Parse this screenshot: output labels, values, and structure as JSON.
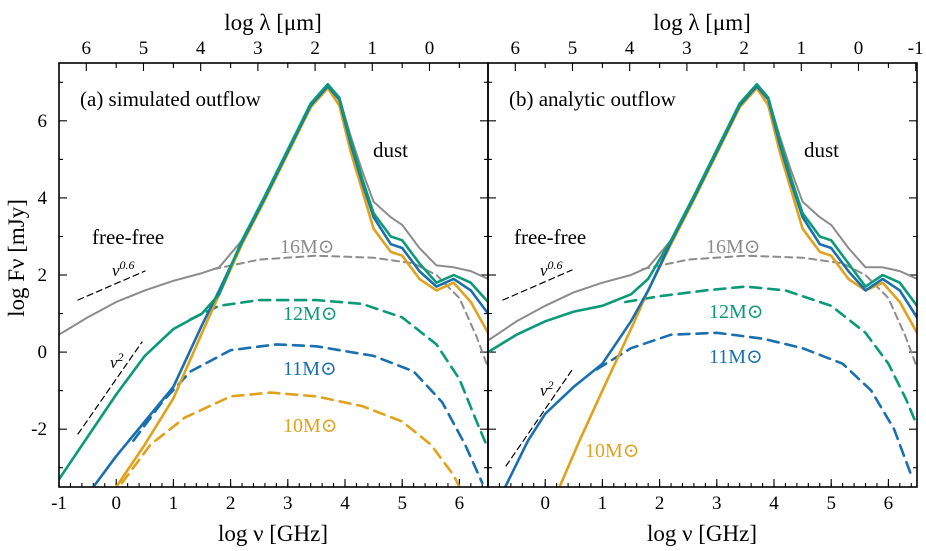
{
  "chart_data": [
    {
      "type": "line",
      "title": "(a) simulated outflow",
      "xlabel": "log ν [GHz]",
      "ylabel": "log Fν [mJy]",
      "top_xlabel": "log λ [μm]",
      "xlim": [
        -1,
        6.5
      ],
      "ylim": [
        -3.5,
        7.5
      ],
      "x_ticks": [
        "-1",
        "0",
        "1",
        "2",
        "3",
        "4",
        "5",
        "6"
      ],
      "y_ticks": [
        "-2",
        "0",
        "2",
        "4",
        "6"
      ],
      "top_ticks": [
        "6",
        "5",
        "4",
        "3",
        "2",
        "1",
        "0"
      ],
      "annotations": [
        "dust",
        "free-free",
        "ν0.6",
        "ν2"
      ],
      "series": [
        {
          "name": "16M⊙",
          "color": "#8c8c8c",
          "total": [
            [
              -1,
              0.45
            ],
            [
              -0.5,
              0.9
            ],
            [
              0,
              1.3
            ],
            [
              0.5,
              1.6
            ],
            [
              1,
              1.85
            ],
            [
              1.5,
              2.05
            ],
            [
              1.8,
              2.2
            ],
            [
              2.2,
              2.9
            ],
            [
              2.6,
              4.0
            ],
            [
              3.0,
              5.2
            ],
            [
              3.4,
              6.4
            ],
            [
              3.7,
              6.9
            ],
            [
              3.9,
              6.6
            ],
            [
              4.1,
              5.6
            ],
            [
              4.3,
              4.7
            ],
            [
              4.5,
              3.9
            ],
            [
              4.8,
              3.5
            ],
            [
              5.0,
              3.3
            ],
            [
              5.3,
              2.7
            ],
            [
              5.6,
              2.25
            ],
            [
              5.9,
              2.2
            ],
            [
              6.2,
              2.1
            ],
            [
              6.5,
              1.9
            ]
          ],
          "freefree": [
            [
              1.7,
              2.15
            ],
            [
              2.5,
              2.4
            ],
            [
              3.5,
              2.5
            ],
            [
              4.5,
              2.45
            ],
            [
              5.2,
              2.3
            ],
            [
              5.6,
              2.0
            ],
            [
              6.0,
              1.4
            ],
            [
              6.3,
              0.4
            ],
            [
              6.5,
              -0.4
            ]
          ]
        },
        {
          "name": "12M⊙",
          "color": "#0a9a78",
          "total": [
            [
              -1,
              -3.3
            ],
            [
              -0.5,
              -2.2
            ],
            [
              0,
              -1.1
            ],
            [
              0.5,
              -0.1
            ],
            [
              1,
              0.6
            ],
            [
              1.5,
              1.0
            ],
            [
              1.8,
              1.5
            ],
            [
              2.2,
              2.9
            ],
            [
              2.6,
              4.05
            ],
            [
              3.0,
              5.25
            ],
            [
              3.4,
              6.45
            ],
            [
              3.7,
              6.95
            ],
            [
              3.9,
              6.6
            ],
            [
              4.1,
              5.5
            ],
            [
              4.3,
              4.5
            ],
            [
              4.5,
              3.6
            ],
            [
              4.8,
              3.0
            ],
            [
              5.0,
              2.9
            ],
            [
              5.3,
              2.3
            ],
            [
              5.6,
              1.8
            ],
            [
              5.9,
              2.0
            ],
            [
              6.2,
              1.8
            ],
            [
              6.5,
              1.3
            ]
          ],
          "freefree": [
            [
              1.3,
              0.85
            ],
            [
              1.8,
              1.2
            ],
            [
              2.5,
              1.35
            ],
            [
              3.5,
              1.35
            ],
            [
              4.3,
              1.25
            ],
            [
              5.0,
              0.9
            ],
            [
              5.6,
              0.2
            ],
            [
              6.0,
              -0.7
            ],
            [
              6.3,
              -1.8
            ],
            [
              6.5,
              -2.5
            ]
          ]
        },
        {
          "name": "11M⊙",
          "color": "#1a6fae",
          "total": [
            [
              -0.4,
              -3.5
            ],
            [
              0,
              -2.7
            ],
            [
              0.5,
              -1.8
            ],
            [
              1,
              -0.9
            ],
            [
              1.5,
              0.7
            ],
            [
              1.8,
              1.6
            ],
            [
              2.2,
              2.85
            ],
            [
              2.6,
              4.0
            ],
            [
              3.0,
              5.2
            ],
            [
              3.4,
              6.4
            ],
            [
              3.7,
              6.9
            ],
            [
              3.9,
              6.55
            ],
            [
              4.1,
              5.4
            ],
            [
              4.3,
              4.4
            ],
            [
              4.5,
              3.5
            ],
            [
              4.8,
              2.8
            ],
            [
              5.0,
              2.7
            ],
            [
              5.3,
              2.1
            ],
            [
              5.6,
              1.7
            ],
            [
              5.9,
              1.9
            ],
            [
              6.2,
              1.6
            ],
            [
              6.5,
              1.0
            ]
          ],
          "freefree": [
            [
              0.3,
              -2.3
            ],
            [
              0.8,
              -1.3
            ],
            [
              1.3,
              -0.5
            ],
            [
              2.0,
              0.05
            ],
            [
              2.8,
              0.2
            ],
            [
              3.5,
              0.15
            ],
            [
              4.5,
              -0.1
            ],
            [
              5.2,
              -0.5
            ],
            [
              5.7,
              -1.3
            ],
            [
              6.1,
              -2.4
            ],
            [
              6.4,
              -3.4
            ]
          ]
        },
        {
          "name": "10M⊙",
          "color": "#e0a21c",
          "total": [
            [
              0,
              -3.5
            ],
            [
              0.5,
              -2.4
            ],
            [
              1,
              -1.2
            ],
            [
              1.5,
              0.5
            ],
            [
              1.8,
              1.5
            ],
            [
              2.2,
              2.8
            ],
            [
              2.6,
              3.95
            ],
            [
              3.0,
              5.15
            ],
            [
              3.4,
              6.35
            ],
            [
              3.7,
              6.85
            ],
            [
              3.9,
              6.4
            ],
            [
              4.1,
              5.2
            ],
            [
              4.3,
              4.2
            ],
            [
              4.5,
              3.2
            ],
            [
              4.8,
              2.6
            ],
            [
              5.0,
              2.5
            ],
            [
              5.3,
              1.9
            ],
            [
              5.6,
              1.6
            ],
            [
              5.9,
              1.8
            ],
            [
              6.2,
              1.3
            ],
            [
              6.5,
              0.5
            ]
          ],
          "freefree": [
            [
              0.1,
              -3.4
            ],
            [
              0.6,
              -2.4
            ],
            [
              1.2,
              -1.7
            ],
            [
              2.0,
              -1.15
            ],
            [
              2.7,
              -1.05
            ],
            [
              3.5,
              -1.15
            ],
            [
              4.3,
              -1.4
            ],
            [
              5.0,
              -1.8
            ],
            [
              5.5,
              -2.4
            ],
            [
              5.9,
              -3.2
            ],
            [
              6.0,
              -3.5
            ]
          ]
        }
      ]
    },
    {
      "type": "line",
      "title": "(b) analytic outflow",
      "xlabel": "log ν [GHz]",
      "top_xlabel": "log λ [μm]",
      "xlim": [
        -1,
        6.5
      ],
      "ylim": [
        -3.5,
        7.5
      ],
      "x_ticks": [
        "0",
        "1",
        "2",
        "3",
        "4",
        "5",
        "6"
      ],
      "top_ticks": [
        "6",
        "5",
        "4",
        "3",
        "2",
        "1",
        "0",
        "-1"
      ],
      "annotations": [
        "dust",
        "free-free",
        "ν0.6",
        "ν2"
      ],
      "series": [
        {
          "name": "16M⊙",
          "color": "#8c8c8c",
          "total": [
            [
              -1,
              0.3
            ],
            [
              -0.5,
              0.8
            ],
            [
              0,
              1.2
            ],
            [
              0.5,
              1.55
            ],
            [
              1,
              1.8
            ],
            [
              1.5,
              2.0
            ],
            [
              1.8,
              2.2
            ],
            [
              2.2,
              2.9
            ],
            [
              2.6,
              4.0
            ],
            [
              3.0,
              5.2
            ],
            [
              3.4,
              6.4
            ],
            [
              3.7,
              6.9
            ],
            [
              3.9,
              6.6
            ],
            [
              4.1,
              5.6
            ],
            [
              4.3,
              4.7
            ],
            [
              4.5,
              3.9
            ],
            [
              4.8,
              3.5
            ],
            [
              5.0,
              3.3
            ],
            [
              5.3,
              2.7
            ],
            [
              5.6,
              2.2
            ],
            [
              5.9,
              2.2
            ],
            [
              6.2,
              2.1
            ],
            [
              6.5,
              1.9
            ]
          ],
          "freefree": [
            [
              1.7,
              2.15
            ],
            [
              2.5,
              2.4
            ],
            [
              3.5,
              2.5
            ],
            [
              4.5,
              2.45
            ],
            [
              5.2,
              2.3
            ],
            [
              5.6,
              2.0
            ],
            [
              6.0,
              1.4
            ],
            [
              6.3,
              0.4
            ],
            [
              6.5,
              -0.4
            ]
          ]
        },
        {
          "name": "12M⊙",
          "color": "#0a9a78",
          "total": [
            [
              -1,
              0.0
            ],
            [
              -0.5,
              0.45
            ],
            [
              0,
              0.8
            ],
            [
              0.5,
              1.05
            ],
            [
              1,
              1.2
            ],
            [
              1.5,
              1.5
            ],
            [
              1.8,
              1.9
            ],
            [
              2.2,
              2.9
            ],
            [
              2.6,
              4.05
            ],
            [
              3.0,
              5.25
            ],
            [
              3.4,
              6.45
            ],
            [
              3.7,
              6.95
            ],
            [
              3.9,
              6.6
            ],
            [
              4.1,
              5.5
            ],
            [
              4.3,
              4.5
            ],
            [
              4.5,
              3.6
            ],
            [
              4.8,
              3.0
            ],
            [
              5.0,
              2.9
            ],
            [
              5.3,
              2.3
            ],
            [
              5.6,
              1.7
            ],
            [
              5.9,
              2.0
            ],
            [
              6.2,
              1.8
            ],
            [
              6.5,
              1.2
            ]
          ],
          "freefree": [
            [
              1.4,
              1.3
            ],
            [
              2.0,
              1.45
            ],
            [
              2.8,
              1.6
            ],
            [
              3.5,
              1.7
            ],
            [
              4.2,
              1.6
            ],
            [
              5.0,
              1.2
            ],
            [
              5.6,
              0.5
            ],
            [
              6.0,
              -0.3
            ],
            [
              6.3,
              -1.2
            ],
            [
              6.5,
              -1.9
            ]
          ]
        },
        {
          "name": "11M⊙",
          "color": "#1a6fae",
          "total": [
            [
              -0.7,
              -3.5
            ],
            [
              -0.3,
              -2.3
            ],
            [
              0,
              -1.6
            ],
            [
              0.5,
              -0.9
            ],
            [
              1,
              -0.3
            ],
            [
              1.5,
              0.8
            ],
            [
              1.8,
              1.6
            ],
            [
              2.2,
              2.85
            ],
            [
              2.6,
              4.0
            ],
            [
              3.0,
              5.2
            ],
            [
              3.4,
              6.4
            ],
            [
              3.7,
              6.9
            ],
            [
              3.9,
              6.55
            ],
            [
              4.1,
              5.4
            ],
            [
              4.3,
              4.4
            ],
            [
              4.5,
              3.5
            ],
            [
              4.8,
              2.8
            ],
            [
              5.0,
              2.7
            ],
            [
              5.3,
              2.1
            ],
            [
              5.6,
              1.6
            ],
            [
              5.9,
              1.9
            ],
            [
              6.2,
              1.6
            ],
            [
              6.5,
              0.9
            ]
          ],
          "freefree": [
            [
              0.9,
              -0.45
            ],
            [
              1.5,
              0.1
            ],
            [
              2.2,
              0.45
            ],
            [
              3.0,
              0.5
            ],
            [
              3.8,
              0.35
            ],
            [
              4.5,
              0.1
            ],
            [
              5.2,
              -0.3
            ],
            [
              5.7,
              -1.0
            ],
            [
              6.1,
              -2.0
            ],
            [
              6.4,
              -3.2
            ]
          ]
        },
        {
          "name": "10M⊙",
          "color": "#e0a21c",
          "total": [
            [
              0.25,
              -3.5
            ],
            [
              0.6,
              -2.3
            ],
            [
              1.0,
              -1.0
            ],
            [
              1.5,
              0.6
            ],
            [
              1.8,
              1.6
            ],
            [
              2.2,
              2.8
            ],
            [
              2.6,
              3.95
            ],
            [
              3.0,
              5.15
            ],
            [
              3.4,
              6.35
            ],
            [
              3.7,
              6.85
            ],
            [
              3.9,
              6.4
            ],
            [
              4.1,
              5.2
            ],
            [
              4.3,
              4.2
            ],
            [
              4.5,
              3.2
            ],
            [
              4.8,
              2.6
            ],
            [
              5.0,
              2.5
            ],
            [
              5.3,
              1.9
            ],
            [
              5.6,
              1.6
            ],
            [
              5.9,
              1.8
            ],
            [
              6.2,
              1.3
            ],
            [
              6.5,
              0.5
            ]
          ],
          "freefree": []
        }
      ]
    }
  ]
}
